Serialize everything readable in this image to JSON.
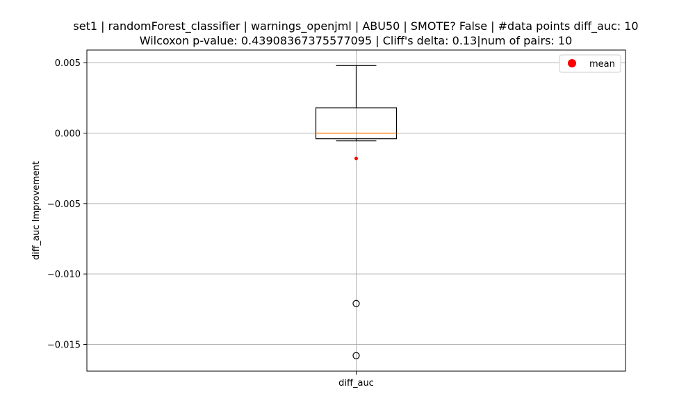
{
  "chart_data": {
    "type": "box",
    "title_line1": "set1 | randomForest_classifier | warnings_openjml | ABU50 | SMOTE? False | #data points diff_auc: 10",
    "title_line2": "Wilcoxon p-value: 0.43908367375577095 | Cliff's delta: 0.13|num of pairs: 10",
    "xlabel": "",
    "ylabel": "diff_auc Improvement",
    "categories": [
      "diff_auc"
    ],
    "ylim": [
      -0.0169,
      0.0059
    ],
    "yticks": [
      0.005,
      0.0,
      -0.005,
      -0.01,
      -0.015
    ],
    "ytick_labels": [
      "0.005",
      "0.000",
      "−0.005",
      "−0.010",
      "−0.015"
    ],
    "grid": true,
    "legend": {
      "position": "top-right",
      "entries": [
        {
          "label": "mean",
          "color": "#ff0000"
        }
      ]
    },
    "box": {
      "whisker_low": -0.00055,
      "q1": -0.0004,
      "median": 0.0,
      "q3": 0.0018,
      "whisker_high": 0.0048,
      "mean": -0.0018,
      "outliers": [
        -0.0121,
        -0.0158
      ]
    },
    "colors": {
      "median": "#ff7f0e",
      "mean": "#ff0000",
      "grid": "#b0b0b0",
      "box": "#000000"
    }
  }
}
